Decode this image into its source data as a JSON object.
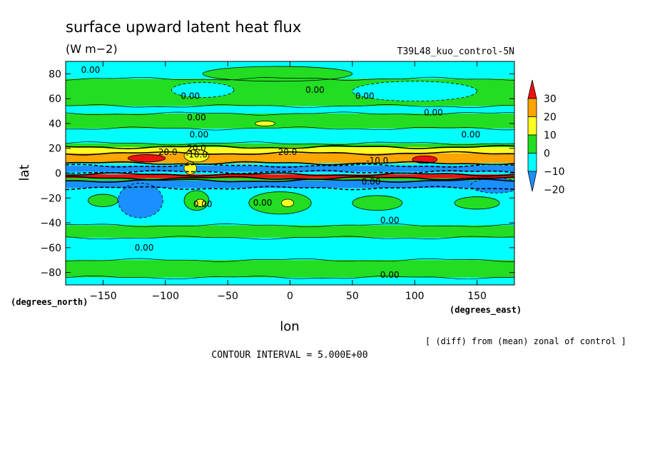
{
  "chart_data": {
    "type": "heatmap",
    "title": "surface upward latent heat flux",
    "units": "(W m−2)",
    "run_label": "T39L48_kuo_control-5N",
    "xlabel": "lon",
    "ylabel": "lat",
    "x_units": "(degrees_east)",
    "y_units": "(degrees_north)",
    "note": "[ (diff) from (mean) zonal of control ]",
    "contour_interval_text": "CONTOUR INTERVAL = 5.000E+00",
    "xlim": [
      -180,
      180
    ],
    "ylim": [
      -90,
      90
    ],
    "x_ticks": [
      -150,
      -100,
      -50,
      0,
      50,
      100,
      150
    ],
    "x_tick_labels": [
      "−150",
      "−100",
      "−50",
      "0",
      "50",
      "100",
      "150"
    ],
    "y_ticks": [
      -80,
      -60,
      -40,
      -20,
      0,
      20,
      40,
      60,
      80
    ],
    "y_tick_labels": [
      "−80",
      "−60",
      "−40",
      "−20",
      "0",
      "20",
      "40",
      "60",
      "80"
    ],
    "colorbar": {
      "levels": [
        -20,
        -10,
        0,
        10,
        20,
        30
      ],
      "labels": [
        "−20",
        "−10",
        "0",
        "10",
        "20",
        "30"
      ],
      "colors": [
        "#1a8fff",
        "#00ffff",
        "#22dd22",
        "#ffff22",
        "#ffa500",
        "#ee1111"
      ],
      "extend": "both"
    },
    "bins": [
      {
        "min": -999,
        "max": -10,
        "color": "#1a8fff"
      },
      {
        "min": -10,
        "max": 0,
        "color": "#00ffff"
      },
      {
        "min": 0,
        "max": 10,
        "color": "#22dd22"
      },
      {
        "min": 10,
        "max": 20,
        "color": "#ffff22"
      },
      {
        "min": 20,
        "max": 30,
        "color": "#ffa500"
      },
      {
        "min": 30,
        "max": 999,
        "color": "#ee1111"
      }
    ],
    "zonal_bands": [
      {
        "lat_min": 76,
        "lat_max": 90,
        "value": -3
      },
      {
        "lat_min": 54,
        "lat_max": 76,
        "value": 3
      },
      {
        "lat_min": 48,
        "lat_max": 54,
        "value": -2
      },
      {
        "lat_min": 36,
        "lat_max": 48,
        "value": 4
      },
      {
        "lat_min": 24,
        "lat_max": 36,
        "value": -4
      },
      {
        "lat_min": 21,
        "lat_max": 24,
        "value": 4
      },
      {
        "lat_min": 16,
        "lat_max": 21,
        "value": 15
      },
      {
        "lat_min": 8,
        "lat_max": 16,
        "value": 25
      },
      {
        "lat_min": 6,
        "lat_max": 8,
        "value": -5
      },
      {
        "lat_min": 1,
        "lat_max": 6,
        "value": -25
      },
      {
        "lat_min": -1,
        "lat_max": 1,
        "value": -5
      },
      {
        "lat_min": -4,
        "lat_max": -1,
        "value": 35
      },
      {
        "lat_min": -6,
        "lat_max": -4,
        "value": 5
      },
      {
        "lat_min": -12,
        "lat_max": -6,
        "value": -15
      },
      {
        "lat_min": -42,
        "lat_max": -12,
        "value": -5
      },
      {
        "lat_min": -52,
        "lat_max": -42,
        "value": 4
      },
      {
        "lat_min": -70,
        "lat_max": -52,
        "value": -3
      },
      {
        "lat_min": -84,
        "lat_max": -70,
        "value": 4
      },
      {
        "lat_min": -90,
        "lat_max": -84,
        "value": -3
      }
    ],
    "blobs": [
      {
        "lon": -70,
        "lat": 67,
        "rx": 25,
        "ry": 6,
        "value": -3
      },
      {
        "lon": 100,
        "lat": 66,
        "rx": 50,
        "ry": 8,
        "value": -3
      },
      {
        "lon": -10,
        "lat": 80,
        "rx": 60,
        "ry": 6,
        "value": 3
      },
      {
        "lon": -20,
        "lat": 40,
        "rx": 8,
        "ry": 2,
        "value": 12
      },
      {
        "lon": -150,
        "lat": -22,
        "rx": 12,
        "ry": 5,
        "value": 4
      },
      {
        "lon": -120,
        "lat": -22,
        "rx": 18,
        "ry": 14,
        "value": -15
      },
      {
        "lon": -75,
        "lat": -22,
        "rx": 10,
        "ry": 8,
        "value": 4
      },
      {
        "lon": -72,
        "lat": -24,
        "rx": 4,
        "ry": 3,
        "value": 12
      },
      {
        "lon": -8,
        "lat": -24,
        "rx": 25,
        "ry": 9,
        "value": 4
      },
      {
        "lon": -2,
        "lat": -24,
        "rx": 5,
        "ry": 3,
        "value": 12
      },
      {
        "lon": 70,
        "lat": -24,
        "rx": 20,
        "ry": 6,
        "value": 4
      },
      {
        "lon": 150,
        "lat": -24,
        "rx": 18,
        "ry": 5,
        "value": 4
      },
      {
        "lon": 165,
        "lat": -10,
        "rx": 20,
        "ry": 6,
        "value": -15
      },
      {
        "lon": -115,
        "lat": 12,
        "rx": 15,
        "ry": 3,
        "value": 35
      },
      {
        "lon": 108,
        "lat": 11,
        "rx": 10,
        "ry": 3,
        "value": 35
      },
      {
        "lon": -75,
        "lat": 14,
        "rx": 10,
        "ry": 5,
        "value": 15
      },
      {
        "lon": -80,
        "lat": 4,
        "rx": 5,
        "ry": 5,
        "value": 15
      }
    ],
    "contour_labels": [
      {
        "text": "0.00",
        "lon": -160,
        "lat": 83
      },
      {
        "text": "0.00",
        "lon": -80,
        "lat": 62
      },
      {
        "text": "0.00",
        "lon": 20,
        "lat": 67
      },
      {
        "text": "0.00",
        "lon": 60,
        "lat": 62
      },
      {
        "text": "0.00",
        "lon": 115,
        "lat": 49
      },
      {
        "text": "0.00",
        "lon": -75,
        "lat": 45
      },
      {
        "text": "0.00",
        "lon": -73,
        "lat": 31
      },
      {
        "text": "0.00",
        "lon": 145,
        "lat": 31
      },
      {
        "text": "20.0",
        "lon": -98,
        "lat": 17
      },
      {
        "text": "20.0",
        "lon": -75,
        "lat": 20
      },
      {
        "text": "20.0",
        "lon": -2,
        "lat": 17
      },
      {
        "text": "-10.0",
        "lon": -75,
        "lat": 15
      },
      {
        "text": "-10.0",
        "lon": 70,
        "lat": 10
      },
      {
        "text": "0.00",
        "lon": 65,
        "lat": -7
      },
      {
        "text": "0.00",
        "lon": -70,
        "lat": -25
      },
      {
        "text": "0.00",
        "lon": -22,
        "lat": -24
      },
      {
        "text": "0.00",
        "lon": 80,
        "lat": -38
      },
      {
        "text": "0.00",
        "lon": -117,
        "lat": -60
      },
      {
        "text": "0.00",
        "lon": 80,
        "lat": -82
      }
    ]
  }
}
